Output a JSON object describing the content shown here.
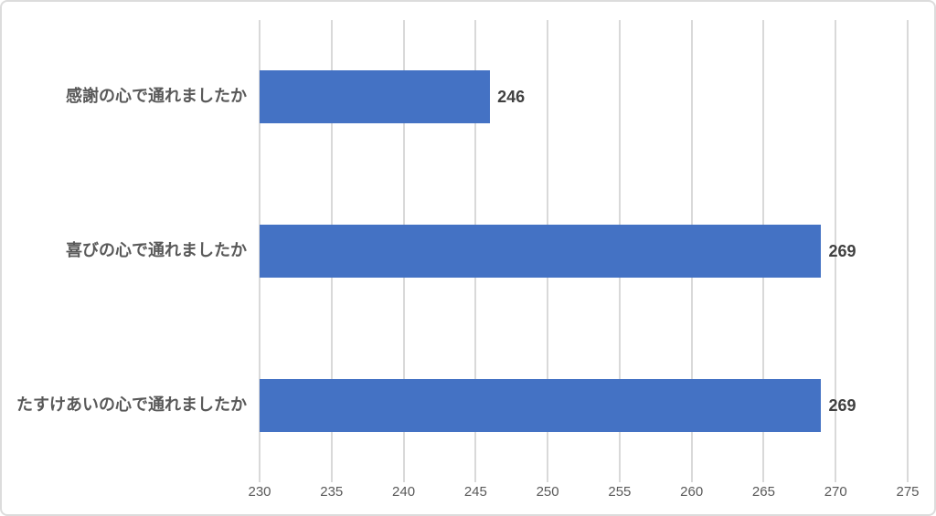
{
  "chart_data": {
    "type": "bar",
    "orientation": "horizontal",
    "title": "",
    "xlabel": "",
    "ylabel": "",
    "categories": [
      "感謝の心で通れましたか",
      "喜びの心で通れましたか",
      "たすけあいの心で通れましたか"
    ],
    "values": [
      246,
      269,
      269
    ],
    "data_labels": [
      "246",
      "269",
      "269"
    ],
    "xlim": [
      230,
      275
    ],
    "x_ticks": [
      230,
      235,
      240,
      245,
      250,
      255,
      260,
      265,
      270,
      275
    ],
    "grid": "vertical",
    "legend": "none",
    "colors": {
      "bar": "#4472C4",
      "gridline": "#D9D9D9",
      "tick_label": "#595959",
      "category_label": "#595959",
      "data_label": "#404040",
      "chart_border": "#DCDCDC",
      "background": "#FFFFFF"
    }
  }
}
